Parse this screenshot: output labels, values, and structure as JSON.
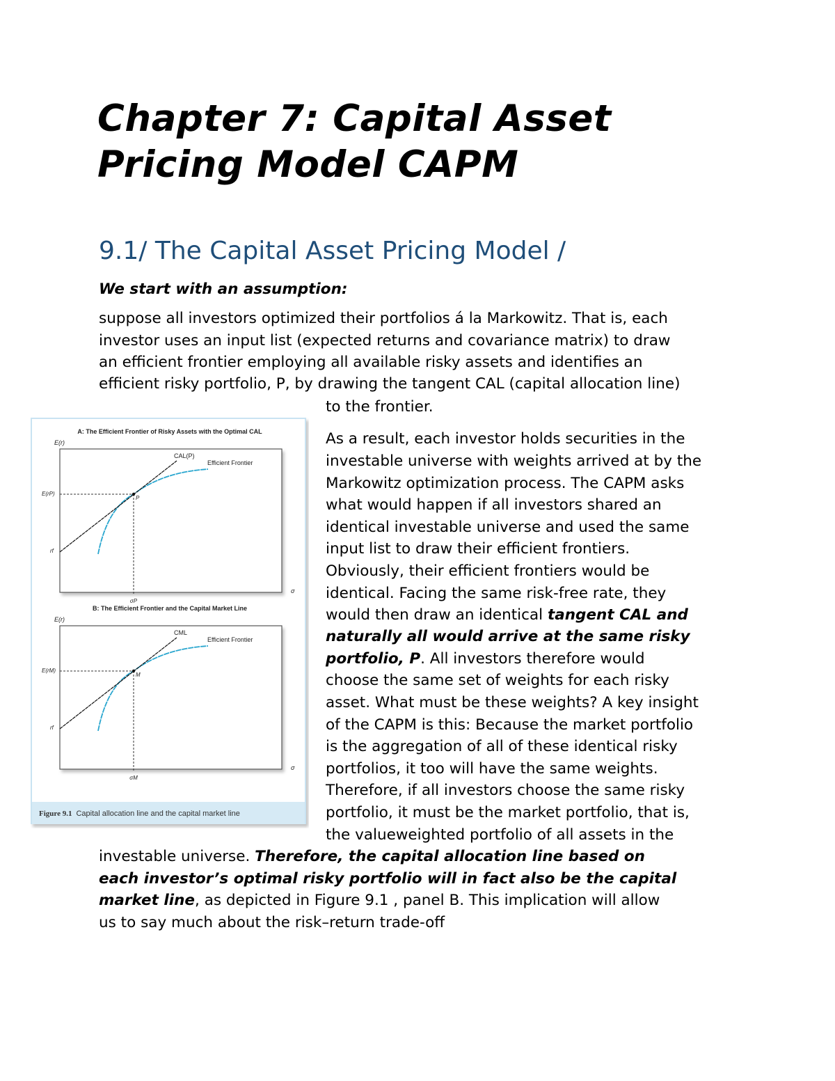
{
  "title_lines": [
    "Chapter 7: Capital Asset",
    "Pricing Model CAPM"
  ],
  "section_heading": "9.1/ The Capital Asset Pricing Model /",
  "lead": "We start with an assumption:",
  "body_lines": [
    [
      {
        "t": "suppose all investors optimized their portfolios á la Markowitz. That is, each"
      }
    ],
    [
      {
        "t": "investor uses an input list (expected returns and covariance matrix) to draw"
      }
    ],
    [
      {
        "t": "an efficient frontier employing all available risky assets and identifies an"
      }
    ],
    [
      {
        "t": "efficient risky portfolio, P, by drawing the tangent CAL (capital allocation line)"
      }
    ],
    [
      {
        "t": "to the frontier."
      }
    ],
    [
      {
        "t": "As a result, each investor holds securities in the"
      }
    ],
    [
      {
        "t": "investable universe with weights arrived at by the"
      }
    ],
    [
      {
        "t": "Markowitz optimization process. The CAPM asks"
      }
    ],
    [
      {
        "t": "what would happen if all investors shared an"
      }
    ],
    [
      {
        "t": "identical investable universe and used the same"
      }
    ],
    [
      {
        "t": "input list to draw their efficient frontiers."
      }
    ],
    [
      {
        "t": "Obviously, their efficient frontiers would be"
      }
    ],
    [
      {
        "t": "identical. Facing the same risk-free rate, they"
      }
    ],
    [
      {
        "t": "would then draw an identical "
      },
      {
        "t": "tangent CAL and",
        "b": true
      }
    ],
    [
      {
        "t": "naturally all would arrive at the same risky",
        "b": true
      }
    ],
    [
      {
        "t": "portfolio, P",
        "b": true
      },
      {
        "t": ". All investors therefore would"
      }
    ],
    [
      {
        "t": "choose the same set of weights for each risky"
      }
    ],
    [
      {
        "t": "asset. What must be these weights? A key insight"
      }
    ],
    [
      {
        "t": "of the CAPM is this: Because the market portfolio"
      }
    ],
    [
      {
        "t": "is the aggregation of all of these identical risky"
      }
    ],
    [
      {
        "t": "portfolios, it too will have the same weights."
      }
    ],
    [
      {
        "t": "Therefore, if all investors choose the same risky"
      }
    ],
    [
      {
        "t": "portfolio, it must be the market portfolio, that is,"
      }
    ],
    [
      {
        "t": "the valueweighted portfolio of all assets in the"
      }
    ],
    [
      {
        "t": "investable universe. "
      },
      {
        "t": "Therefore, the capital allocation line based on",
        "b": true
      }
    ],
    [
      {
        "t": "each investor’s optimal risky portfolio will in fact also be the capital",
        "b": true
      }
    ],
    [
      {
        "t": "market line",
        "b": true
      },
      {
        "t": ", as depicted in Figure  9.1 , panel B. This implication will allow"
      }
    ],
    [
      {
        "t": "us to say much about the risk–return trade-off"
      }
    ]
  ],
  "figure": {
    "panel_a": {
      "title": "A: The Efficient Frontier of Risky Assets with the Optimal CAL",
      "y_axis": "E(r)",
      "x_axis": "σ",
      "line_label": "CAL(P)",
      "frontier_label": "Efficient Frontier",
      "point_label": "P",
      "y_point": "E(rP)",
      "x_point": "σP",
      "rf": "rf"
    },
    "panel_b": {
      "title": "B: The Efficient Frontier and the Capital Market Line",
      "y_axis": "E(r)",
      "x_axis": "σ",
      "line_label": "CML",
      "frontier_label": "Efficient Frontier",
      "point_label": "M",
      "y_point": "E(rM)",
      "x_point": "σM",
      "rf": "rf"
    },
    "caption_label": "Figure 9.1",
    "caption_text": "Capital allocation line and the capital market line",
    "colors": {
      "frontier": "#29a6cf",
      "border": "#c9e3f2",
      "caption_band": "#d6eaf5"
    }
  }
}
